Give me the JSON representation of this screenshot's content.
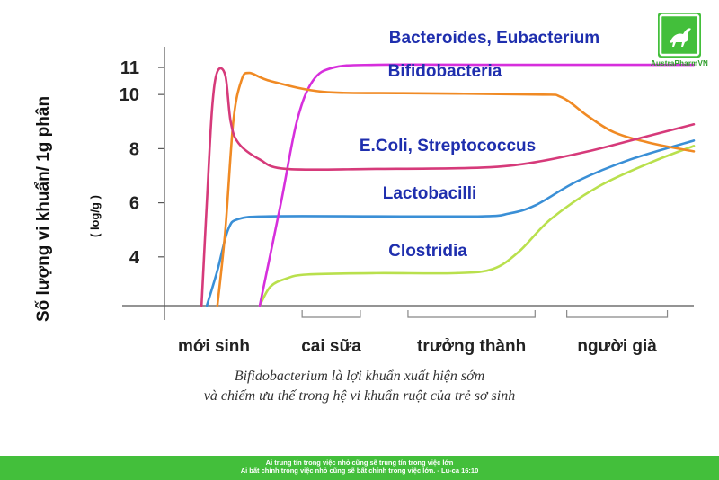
{
  "chart_data": {
    "type": "line",
    "title": "",
    "ylabel": "Số lượng vi khuẩn/ 1g phân",
    "ylabel_unit": "( log/g )",
    "ylim": [
      2.2,
      11.5
    ],
    "yticks": [
      4,
      6,
      8,
      10,
      11
    ],
    "xlim": [
      0,
      100
    ],
    "x_periods": [
      {
        "label": "mới sinh",
        "from": 0,
        "to": 0
      },
      {
        "label": "cai sữa",
        "from": 26,
        "to": 37
      },
      {
        "label": "trưởng thành",
        "from": 46,
        "to": 70
      },
      {
        "label": "người già",
        "from": 76,
        "to": 95
      }
    ],
    "series": [
      {
        "name": "Bacteroides, Eubacterium",
        "color": "#d62fdc",
        "points": [
          [
            18,
            2.2
          ],
          [
            22,
            6
          ],
          [
            25,
            9
          ],
          [
            28,
            10.5
          ],
          [
            32,
            11
          ],
          [
            40,
            11.1
          ],
          [
            60,
            11.1
          ],
          [
            80,
            11.1
          ],
          [
            92,
            11.1
          ],
          [
            100,
            11.1
          ]
        ]
      },
      {
        "name": "Bifidobacteria",
        "color": "#f08a24",
        "points": [
          [
            10,
            2.2
          ],
          [
            11.5,
            5
          ],
          [
            13,
            9
          ],
          [
            14.5,
            10.5
          ],
          [
            16,
            10.8
          ],
          [
            20,
            10.5
          ],
          [
            30,
            10.1
          ],
          [
            45,
            10.05
          ],
          [
            70,
            10
          ],
          [
            75,
            9.9
          ],
          [
            80,
            9.2
          ],
          [
            85,
            8.6
          ],
          [
            92,
            8.2
          ],
          [
            100,
            7.9
          ]
        ]
      },
      {
        "name": "E.Coli, Streptococcus",
        "color": "#d63a7a",
        "points": [
          [
            7,
            2.2
          ],
          [
            8,
            6
          ],
          [
            9,
            9.5
          ],
          [
            10,
            10.85
          ],
          [
            11.5,
            10.7
          ],
          [
            12.5,
            9
          ],
          [
            14,
            8.2
          ],
          [
            18,
            7.6
          ],
          [
            23,
            7.25
          ],
          [
            40,
            7.25
          ],
          [
            60,
            7.3
          ],
          [
            70,
            7.5
          ],
          [
            80,
            7.9
          ],
          [
            90,
            8.4
          ],
          [
            100,
            8.9
          ]
        ]
      },
      {
        "name": "Lactobacilli",
        "color": "#3a8fd6",
        "points": [
          [
            8,
            2.2
          ],
          [
            10,
            3.5
          ],
          [
            12,
            5
          ],
          [
            14,
            5.4
          ],
          [
            20,
            5.5
          ],
          [
            40,
            5.5
          ],
          [
            60,
            5.5
          ],
          [
            65,
            5.6
          ],
          [
            70,
            5.9
          ],
          [
            78,
            6.8
          ],
          [
            88,
            7.6
          ],
          [
            100,
            8.3
          ]
        ]
      },
      {
        "name": "Clostridia",
        "color": "#b9e04d",
        "points": [
          [
            18,
            2.2
          ],
          [
            20,
            2.9
          ],
          [
            23,
            3.2
          ],
          [
            27,
            3.35
          ],
          [
            40,
            3.4
          ],
          [
            55,
            3.4
          ],
          [
            62,
            3.55
          ],
          [
            67,
            4.2
          ],
          [
            73,
            5.4
          ],
          [
            82,
            6.6
          ],
          [
            92,
            7.5
          ],
          [
            100,
            8.1
          ]
        ]
      }
    ],
    "series_labels": [
      {
        "text": "Bacteroides, Eubacterium",
        "color": "#1f2fae"
      },
      {
        "text": "Bifidobacteria",
        "color": "#1f2fae"
      },
      {
        "text": "E.Coli, Streptococcus",
        "color": "#1f2fae"
      },
      {
        "text": "Lactobacilli",
        "color": "#1f2fae"
      },
      {
        "text": "Clostridia",
        "color": "#1f2fae"
      }
    ]
  },
  "caption": {
    "line1": "Bifidobacterium là lợi khuẩn xuất hiện sớm",
    "line2": "và chiếm ưu thế trong hệ vi khuẩn ruột của trẻ sơ sinh"
  },
  "logo": {
    "text": "AustraPharmVN",
    "color": "#43bf3b"
  },
  "footer": {
    "line1": "Ai trung tín trong việc nhỏ cũng sẽ trung tín trong việc lớn",
    "line2": "Ai bất chính trong việc nhỏ cũng sẽ bất chính trong việc lớn. - Lu-ca 16:10",
    "color": "#43bf3b"
  }
}
